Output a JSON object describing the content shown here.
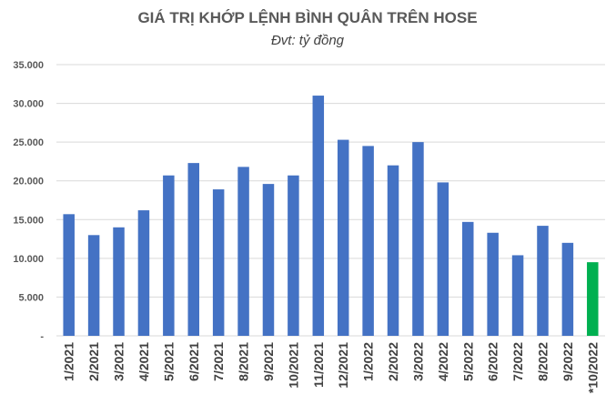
{
  "chart_data": {
    "type": "bar",
    "title": "GIÁ TRỊ KHỚP LỆNH BÌNH QUÂN TRÊN HOSE",
    "subtitle": "Đvt: tỷ đồng",
    "categories": [
      "1/2021",
      "2/2021",
      "3/2021",
      "4/2021",
      "5/2021",
      "6/2021",
      "7/2021",
      "8/2021",
      "9/2021",
      "10/2021",
      "11/2021",
      "12/2021",
      "1/2022",
      "2/2022",
      "3/2022",
      "4/2022",
      "5/2022",
      "6/2022",
      "7/2022",
      "8/2022",
      "9/2022",
      "*10/2022"
    ],
    "values": [
      15700,
      13000,
      14000,
      16200,
      20700,
      22300,
      18900,
      21800,
      19600,
      20700,
      31000,
      25300,
      24500,
      22000,
      25000,
      19800,
      14700,
      13300,
      10400,
      14200,
      12000,
      9500
    ],
    "ylim": [
      0,
      35000
    ],
    "yticks": [
      0,
      5000,
      10000,
      15000,
      20000,
      25000,
      30000,
      35000
    ],
    "ytick_labels": [
      "-",
      "5.000",
      "10.000",
      "15.000",
      "20.000",
      "25.000",
      "30.000",
      "35.000"
    ],
    "grid": true,
    "colors": {
      "bar": "#4472C4",
      "highlight_bar": "#00B050",
      "grid": "#D9D9D9"
    },
    "highlight_index": 21
  }
}
